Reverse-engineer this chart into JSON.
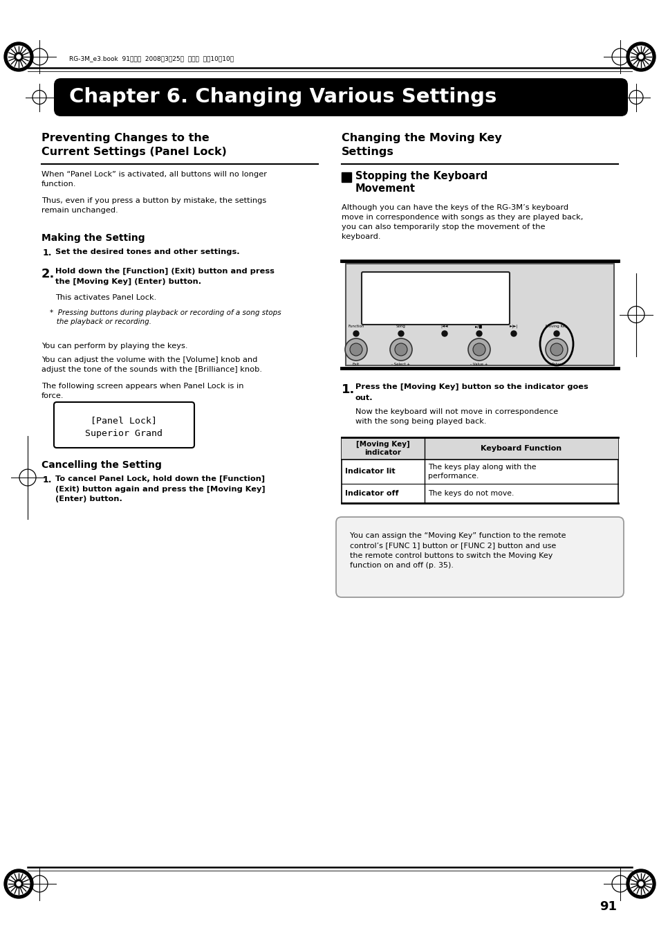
{
  "page_bg": "#ffffff",
  "header_bar_color": "#000000",
  "header_text": "Chapter 6. Changing Various Settings",
  "header_text_color": "#ffffff",
  "top_meta_text": "RG-3M_e3.book  91ページ  2008年3月25日  火曜日  午前10時10分",
  "page_number": "91",
  "note_box_bg": "#f2f2f2",
  "note_box_border": "#999999",
  "table_header_bg": "#d8d8d8"
}
